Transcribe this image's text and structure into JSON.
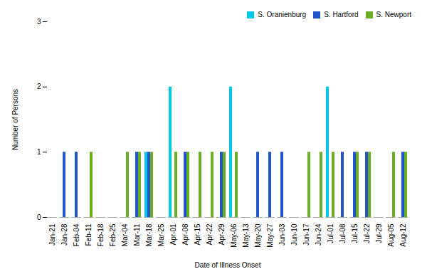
{
  "chart_data": {
    "type": "bar",
    "xlabel": "Date of Illness Onset",
    "ylabel": "Number of Persons",
    "categories": [
      "Jan-21",
      "Jan-28",
      "Feb-04",
      "Feb-11",
      "Feb-18",
      "Feb-25",
      "Mar-04",
      "Mar-11",
      "Mar-18",
      "Mar-25",
      "Apr-01",
      "Apr-08",
      "Apr-15",
      "Apr-22",
      "Apr-29",
      "May-06",
      "May-13",
      "May-20",
      "May-27",
      "Jun-03",
      "Jun-10",
      "Jun-17",
      "Jun-24",
      "Jul-01",
      "Jul-08",
      "Jul-15",
      "Jul-22",
      "Jul-29",
      "Aug-05",
      "Aug-12"
    ],
    "series": [
      {
        "name": "S. Oranienburg",
        "color": "#00C8E6",
        "values": [
          0,
          0,
          0,
          0,
          0,
          0,
          0,
          0,
          1,
          0,
          2,
          0,
          0,
          0,
          0,
          2,
          0,
          0,
          0,
          0,
          0,
          0,
          0,
          2,
          0,
          0,
          0,
          0,
          0,
          0
        ]
      },
      {
        "name": "S. Hartford",
        "color": "#2255CC",
        "values": [
          0,
          1,
          1,
          0,
          0,
          0,
          0,
          1,
          1,
          0,
          0,
          1,
          0,
          0,
          1,
          0,
          0,
          1,
          1,
          1,
          0,
          0,
          0,
          0,
          1,
          1,
          1,
          0,
          0,
          1
        ]
      },
      {
        "name": "S. Newport",
        "color": "#6BAD23",
        "values": [
          0,
          0,
          0,
          1,
          0,
          0,
          1,
          1,
          1,
          0,
          1,
          1,
          1,
          1,
          1,
          1,
          0,
          0,
          0,
          0,
          0,
          1,
          1,
          1,
          0,
          1,
          1,
          0,
          1,
          1
        ]
      }
    ],
    "ylim": [
      0,
      3
    ],
    "yticks": [
      0,
      1,
      2,
      3
    ],
    "grid": false,
    "legend": "upper right"
  }
}
